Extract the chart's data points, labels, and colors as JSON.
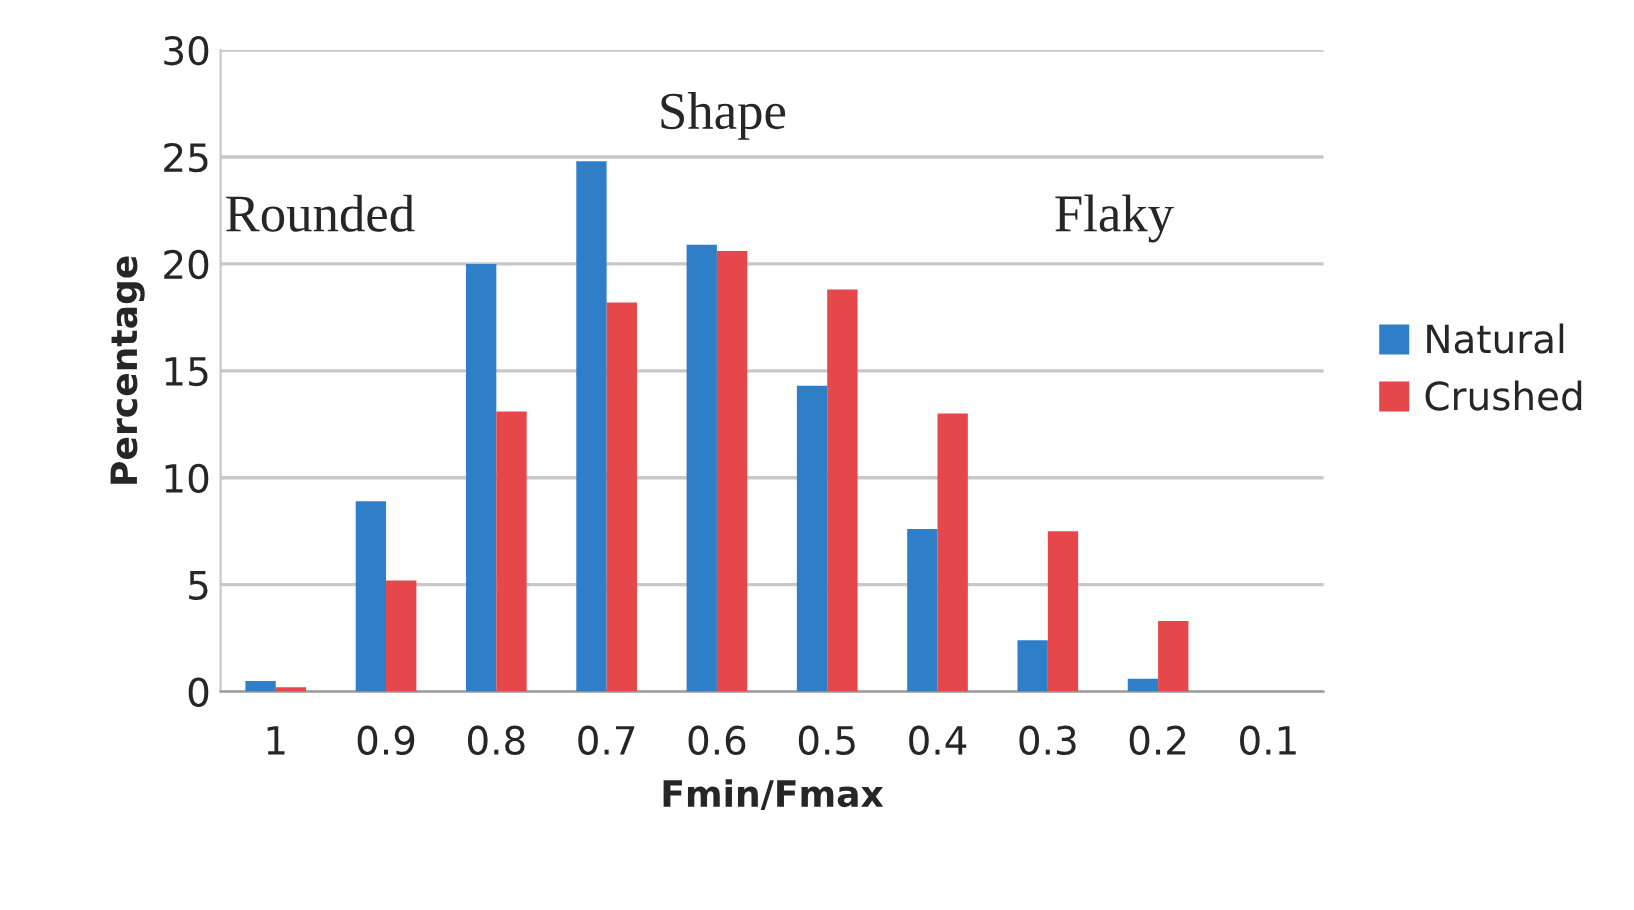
{
  "chart_data": {
    "type": "bar",
    "xlabel": "Fmin/Fmax",
    "ylabel": "Percentage",
    "categories": [
      "1",
      "0.9",
      "0.8",
      "0.7",
      "0.6",
      "0.5",
      "0.4",
      "0.3",
      "0.2",
      "0.1"
    ],
    "series": [
      {
        "name": "Natural",
        "color": "#2e7fc8",
        "values": [
          0.5,
          8.9,
          20,
          24.8,
          20.9,
          14.3,
          7.6,
          2.4,
          0.6,
          0
        ]
      },
      {
        "name": "Crushed",
        "color": "#e5474a",
        "values": [
          0.2,
          5.2,
          13.1,
          18.2,
          20.6,
          18.8,
          13,
          7.5,
          3.3,
          0
        ]
      }
    ],
    "ylim": [
      0,
      30
    ],
    "yticks": [
      0,
      5,
      10,
      15,
      20,
      25,
      30
    ],
    "grid": "y",
    "legend": "right",
    "annotations": [
      "Rounded",
      "Shape",
      "Flaky"
    ]
  }
}
